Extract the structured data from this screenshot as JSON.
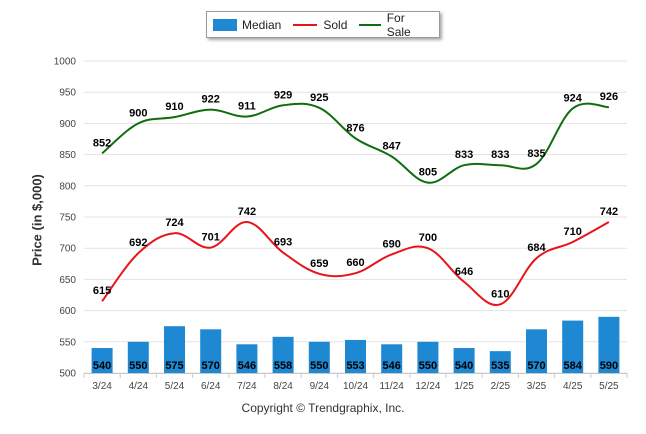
{
  "chart_data": {
    "type": "bar",
    "title": "",
    "xlabel": "",
    "ylabel": "Price (in $,000)",
    "ylim": [
      500,
      1000
    ],
    "yticks": [
      500,
      550,
      600,
      650,
      700,
      750,
      800,
      850,
      900,
      950,
      1000
    ],
    "categories": [
      "3/24",
      "4/24",
      "5/24",
      "6/24",
      "7/24",
      "8/24",
      "9/24",
      "10/24",
      "11/24",
      "12/24",
      "1/25",
      "2/25",
      "3/25",
      "4/25",
      "5/25"
    ],
    "grid": true,
    "legend_position": "top-center",
    "series": [
      {
        "name": "Median",
        "kind": "bar",
        "color": "#1f88d2",
        "values": [
          540,
          550,
          575,
          570,
          546,
          558,
          550,
          553,
          546,
          550,
          540,
          535,
          570,
          584,
          590
        ]
      },
      {
        "name": "Sold",
        "kind": "line",
        "color": "#e8141b",
        "values": [
          615,
          692,
          724,
          701,
          742,
          693,
          659,
          660,
          690,
          700,
          646,
          610,
          684,
          710,
          742
        ]
      },
      {
        "name": "For Sale",
        "kind": "line",
        "color": "#0f6e0f",
        "values": [
          852,
          900,
          910,
          922,
          911,
          929,
          925,
          876,
          847,
          805,
          833,
          833,
          835,
          924,
          926
        ]
      }
    ]
  },
  "footer": "Copyright © Trendgraphix, Inc."
}
